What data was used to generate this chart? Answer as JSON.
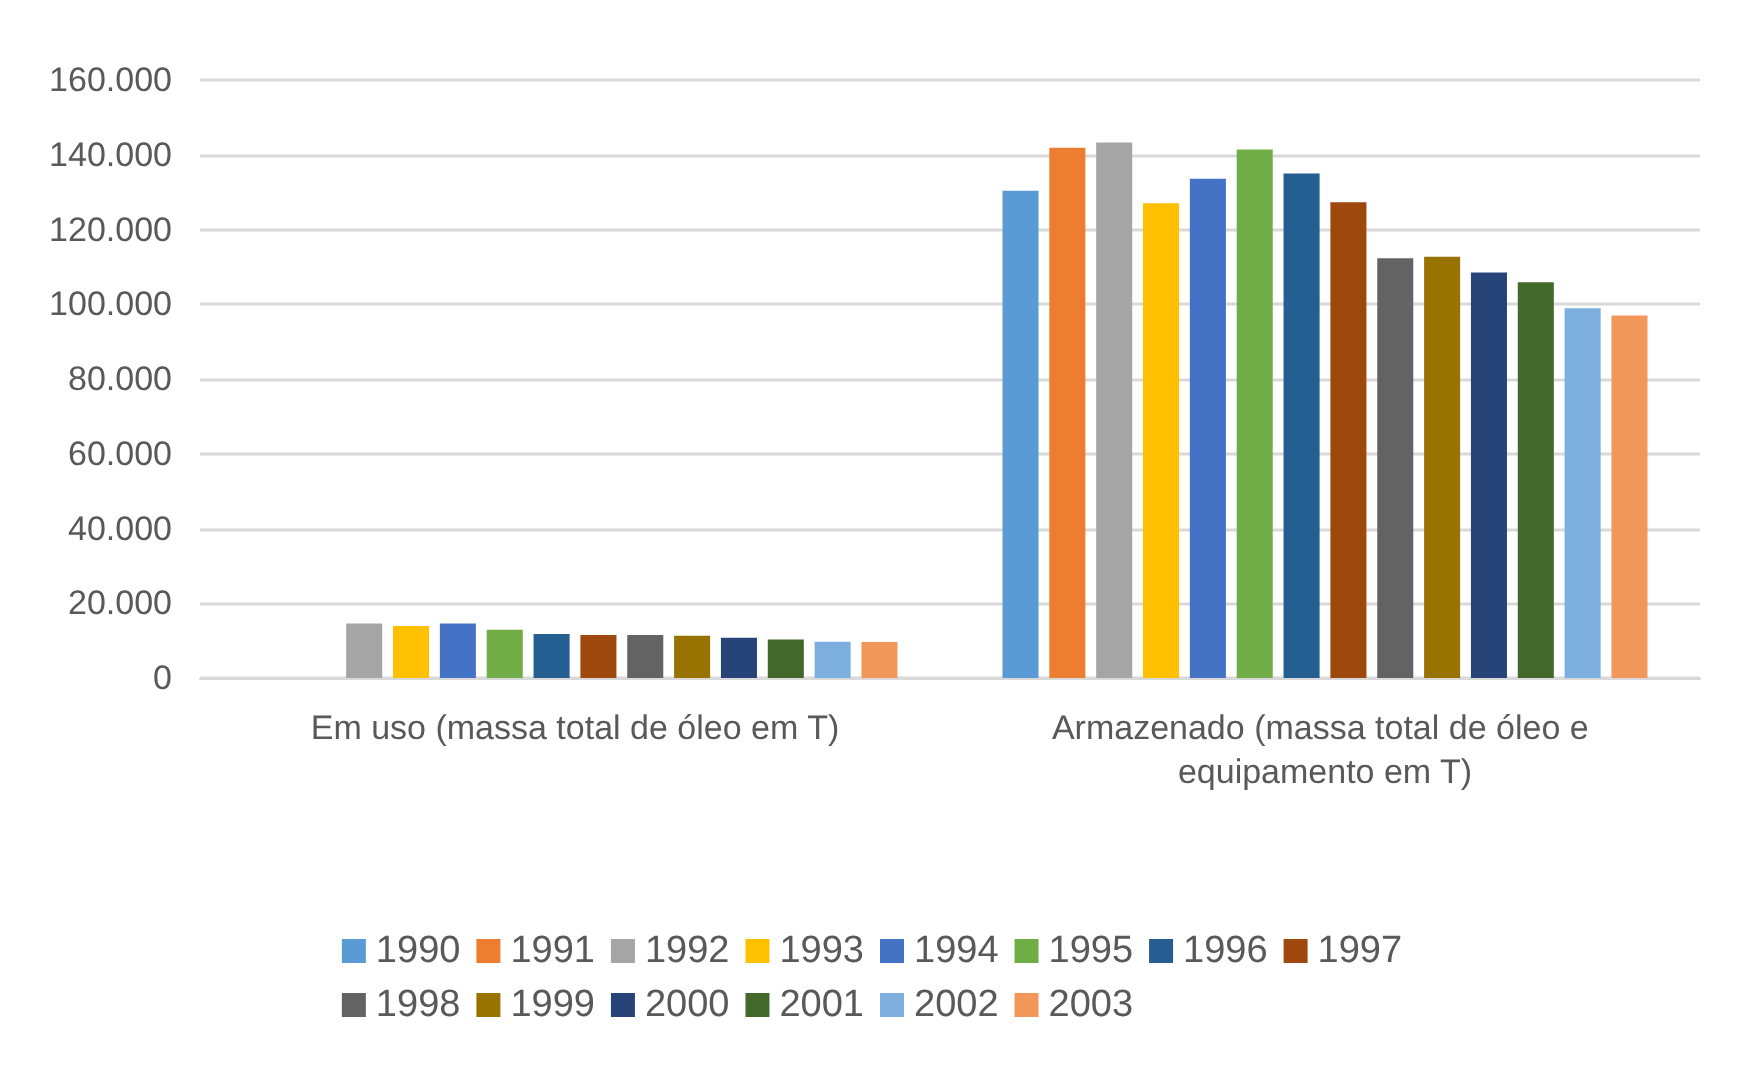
{
  "chart_data": {
    "type": "bar",
    "categories": [
      "Em uso (massa total de óleo em T)",
      "Armazenado (massa total de óleo e equipamento em T)"
    ],
    "series": [
      {
        "name": "1990",
        "color": "#5b9bd5",
        "values": [
          null,
          130400
        ]
      },
      {
        "name": "1991",
        "color": "#ed7d31",
        "values": [
          null,
          141900
        ]
      },
      {
        "name": "1992",
        "color": "#a5a5a5",
        "values": [
          14600,
          143300
        ]
      },
      {
        "name": "1993",
        "color": "#ffc000",
        "values": [
          13900,
          127000
        ]
      },
      {
        "name": "1994",
        "color": "#4472c4",
        "values": [
          14600,
          133600
        ]
      },
      {
        "name": "1995",
        "color": "#70ad47",
        "values": [
          12900,
          141400
        ]
      },
      {
        "name": "1996",
        "color": "#255e91",
        "values": [
          11800,
          135000
        ]
      },
      {
        "name": "1997",
        "color": "#9e480e",
        "values": [
          11500,
          127300
        ]
      },
      {
        "name": "1998",
        "color": "#636363",
        "values": [
          11500,
          112300
        ]
      },
      {
        "name": "1999",
        "color": "#997300",
        "values": [
          11300,
          112700
        ]
      },
      {
        "name": "2000",
        "color": "#264478",
        "values": [
          10800,
          108500
        ]
      },
      {
        "name": "2001",
        "color": "#43682b",
        "values": [
          10300,
          105900
        ]
      },
      {
        "name": "2002",
        "color": "#7cafdd",
        "values": [
          9700,
          98900
        ]
      },
      {
        "name": "2003",
        "color": "#f1975a",
        "values": [
          9600,
          97000
        ]
      }
    ],
    "ylim": [
      0,
      160000
    ],
    "yticks": [
      0,
      {
        "value": 20000,
        "label": "20.000"
      },
      {
        "value": 40000,
        "label": "40.000"
      },
      {
        "value": 60000,
        "label": "60.000"
      },
      {
        "value": 80000,
        "label": "80.000"
      },
      {
        "value": 100000,
        "label": "100.000"
      },
      {
        "value": 120000,
        "label": "120.000"
      },
      {
        "value": 140000,
        "label": "140.000"
      },
      {
        "value": 160000,
        "label": "160.000"
      }
    ],
    "grid": "y",
    "legend": "bottom"
  }
}
